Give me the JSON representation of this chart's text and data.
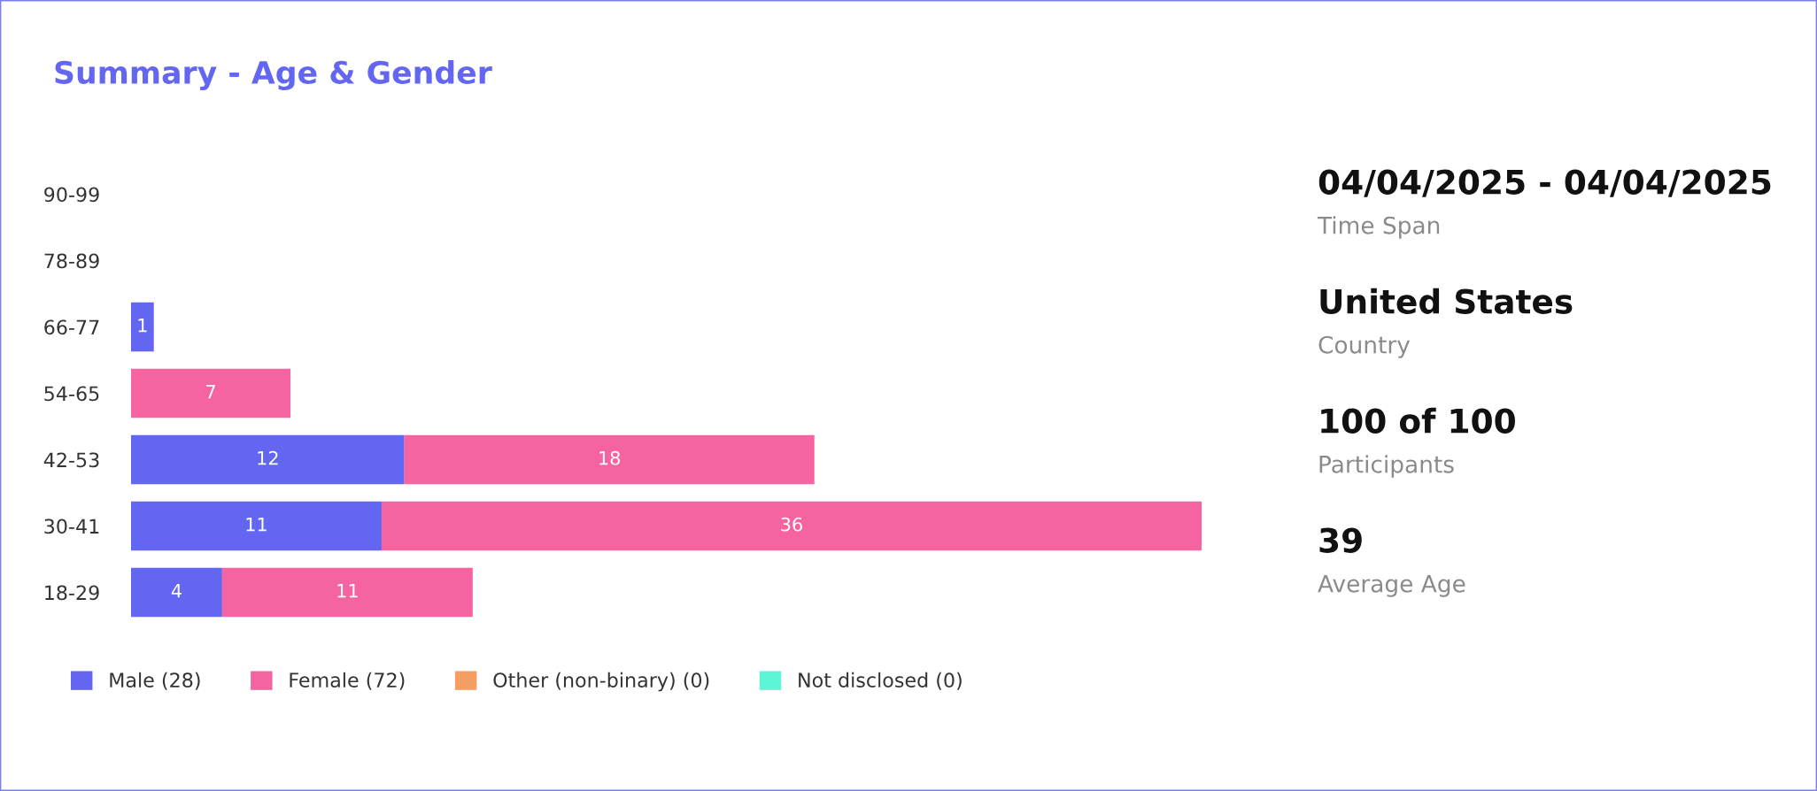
{
  "chart_data": [
    {
      "type": "bar",
      "orientation": "horizontal",
      "stacked": true,
      "title": "Summary - Age & Gender",
      "categories": [
        "90-99",
        "78-89",
        "66-77",
        "54-65",
        "42-53",
        "30-41",
        "18-29"
      ],
      "series": [
        {
          "name": "Male (28)",
          "color": "#6366f1",
          "values": [
            null,
            null,
            1,
            null,
            12,
            11,
            4
          ]
        },
        {
          "name": "Female (72)",
          "color": "#f564a0",
          "values": [
            null,
            null,
            null,
            7,
            18,
            36,
            11
          ]
        },
        {
          "name": "Other (non-binary) (0)",
          "color": "#f59e63",
          "values": [
            null,
            null,
            null,
            null,
            null,
            null,
            null
          ]
        },
        {
          "name": "Not disclosed (0)",
          "color": "#5ef5d6",
          "values": [
            null,
            null,
            null,
            null,
            null,
            null,
            null
          ]
        }
      ],
      "data_labels": true,
      "tick_labels": "y",
      "grid": false,
      "legend": "bottom"
    },
    {
      "type": "other",
      "annotations": [
        "04/04/2025 - 04/04/2025",
        "Time Span",
        "United States",
        "Country",
        "100 of 100",
        "Participants",
        "39",
        "Average Age"
      ]
    }
  ]
}
